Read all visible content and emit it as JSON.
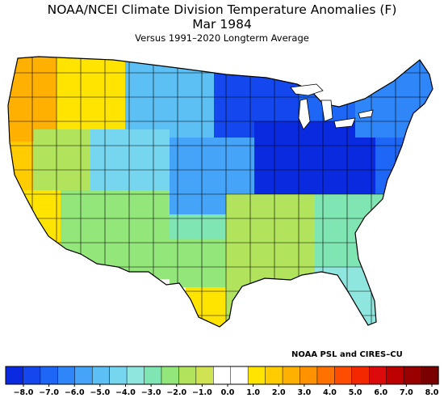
{
  "header": {
    "title": "NOAA/NCEI Climate Division Temperature Anomalies (F)",
    "date": "Mar 1984",
    "baseline": "Versus 1991–2020 Longterm Average"
  },
  "credit": "NOAA PSL and CIRES–CU",
  "legend": {
    "colors": [
      "#0a2ae0",
      "#1448ee",
      "#1e66f5",
      "#2f86f8",
      "#45a4f7",
      "#5cc0f5",
      "#76d6ef",
      "#8fe6df",
      "#7fe5b2",
      "#93e67a",
      "#b2e35d",
      "#d0e352",
      "#ffffff",
      "#ffffff",
      "#ffe400",
      "#ffcc00",
      "#ffb000",
      "#ff9200",
      "#ff7200",
      "#ff4d00",
      "#f42800",
      "#dc0a0a",
      "#bd0000",
      "#990000",
      "#7a0000"
    ],
    "ticks": [
      {
        "label": "−8.0",
        "value": -8
      },
      {
        "label": "−7.0",
        "value": -7
      },
      {
        "label": "−6.0",
        "value": -6
      },
      {
        "label": "−5.0",
        "value": -5
      },
      {
        "label": "−4.0",
        "value": -4
      },
      {
        "label": "−3.0",
        "value": -3
      },
      {
        "label": "−2.0",
        "value": -2
      },
      {
        "label": "−1.0",
        "value": -1
      },
      {
        "label": "0.0",
        "value": 0
      },
      {
        "label": "1.0",
        "value": 1
      },
      {
        "label": "2.0",
        "value": 2
      },
      {
        "label": "3.0",
        "value": 3
      },
      {
        "label": "4.0",
        "value": 4
      },
      {
        "label": "5.0",
        "value": 5
      },
      {
        "label": "6.0",
        "value": 6
      },
      {
        "label": "7.0",
        "value": 7
      },
      {
        "label": "8.0",
        "value": 8
      }
    ]
  },
  "regions": [
    {
      "name": "pacific-northwest-coast",
      "anomaly": 2.4,
      "color": "#ffb000"
    },
    {
      "name": "northern-california",
      "anomaly": 2.0,
      "color": "#ffcc00"
    },
    {
      "name": "southern-california",
      "anomaly": 1.5,
      "color": "#ffe400"
    },
    {
      "name": "idaho-western-montana",
      "anomaly": 0.5,
      "color": "#ffe400"
    },
    {
      "name": "nevada-utah",
      "anomaly": -1.8,
      "color": "#b2e35d"
    },
    {
      "name": "arizona-new-mexico",
      "anomaly": -1.5,
      "color": "#93e67a"
    },
    {
      "name": "wyoming-colorado",
      "anomaly": -3.0,
      "color": "#76d6ef"
    },
    {
      "name": "northern-plains",
      "anomaly": -3.5,
      "color": "#5cc0f5"
    },
    {
      "name": "central-plains",
      "anomaly": -4.5,
      "color": "#45a4f7"
    },
    {
      "name": "upper-midwest",
      "anomaly": -7.0,
      "color": "#1448ee"
    },
    {
      "name": "great-lakes-ohio-valley",
      "anomaly": -7.8,
      "color": "#0a2ae0"
    },
    {
      "name": "appalachians-mid-atlantic",
      "anomaly": -6.5,
      "color": "#1e66f5"
    },
    {
      "name": "new-england",
      "anomaly": -5.5,
      "color": "#2f86f8"
    },
    {
      "name": "southern-plains",
      "anomaly": -2.5,
      "color": "#7fe5b2"
    },
    {
      "name": "texas-central",
      "anomaly": -1.5,
      "color": "#93e67a"
    },
    {
      "name": "south-texas",
      "anomaly": 1.3,
      "color": "#ffe400"
    },
    {
      "name": "gulf-coast-southeast",
      "anomaly": -1.0,
      "color": "#b2e35d"
    },
    {
      "name": "carolinas-georgia",
      "anomaly": -2.5,
      "color": "#7fe5b2"
    },
    {
      "name": "florida",
      "anomaly": -2.0,
      "color": "#8fe6df"
    }
  ]
}
